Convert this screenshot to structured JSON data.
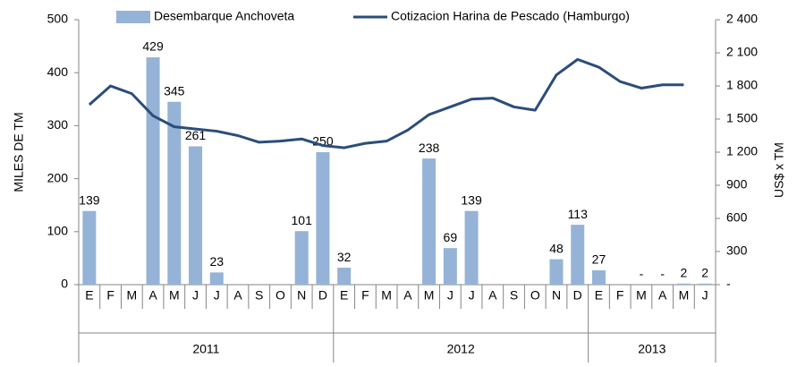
{
  "chart_data": {
    "type": "bar-line",
    "groups": [
      {
        "label": "2011",
        "months": [
          "E",
          "F",
          "M",
          "A",
          "M",
          "J",
          "J",
          "A",
          "S",
          "O",
          "N",
          "D"
        ]
      },
      {
        "label": "2012",
        "months": [
          "E",
          "F",
          "M",
          "A",
          "M",
          "J",
          "J",
          "A",
          "S",
          "O",
          "N",
          "D"
        ]
      },
      {
        "label": "2013",
        "months": [
          "E",
          "F",
          "M",
          "A",
          "M",
          "J"
        ]
      }
    ],
    "ylabel": "MILES DE TM",
    "y2label": "US$ x TM",
    "ylim": [
      0,
      500
    ],
    "yticks": [
      0,
      100,
      200,
      300,
      400,
      500
    ],
    "y2lim": [
      0,
      2400
    ],
    "y2ticks": [
      {
        "value": 0,
        "label": "-"
      },
      300,
      600,
      900,
      {
        "value": 1200,
        "label": "1 200"
      },
      {
        "value": 1500,
        "label": "1 500"
      },
      {
        "value": 1800,
        "label": "1 800"
      },
      {
        "value": 2100,
        "label": "2 100"
      },
      {
        "value": 2400,
        "label": "2 400"
      }
    ],
    "legend": "top",
    "series": [
      {
        "name": "Desembarque Anchoveta",
        "color": "#95b3d7",
        "kind": "bar",
        "values": [
          139,
          null,
          null,
          429,
          345,
          261,
          23,
          null,
          null,
          null,
          101,
          250,
          32,
          null,
          null,
          null,
          238,
          69,
          139,
          null,
          null,
          null,
          48,
          113,
          27,
          null,
          0,
          0,
          2,
          2
        ],
        "value_labels": [
          "139",
          null,
          null,
          "429",
          "345",
          "261",
          "23",
          null,
          null,
          null,
          "101",
          "250",
          "32",
          null,
          null,
          null,
          "238",
          "69",
          "139",
          null,
          null,
          null,
          "48",
          "113",
          "27",
          null,
          "-",
          "-",
          "2",
          "2"
        ]
      },
      {
        "name": "Cotizacion Harina de Pescado (Hamburgo)",
        "color": "#2c4d7a",
        "kind": "line",
        "axis": "y2",
        "values": [
          1630,
          1800,
          1730,
          1530,
          1430,
          1410,
          1390,
          1350,
          1290,
          1300,
          1320,
          1260,
          1240,
          1280,
          1300,
          1400,
          1540,
          1610,
          1680,
          1690,
          1610,
          1580,
          1900,
          2040,
          1970,
          1840,
          1780,
          1810,
          1810,
          null
        ]
      }
    ]
  }
}
